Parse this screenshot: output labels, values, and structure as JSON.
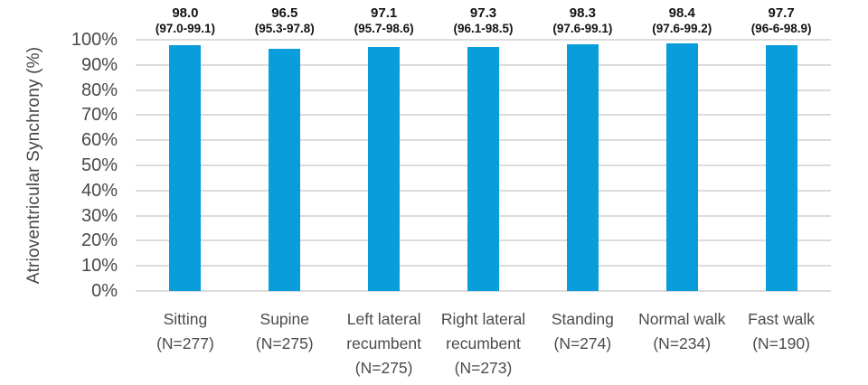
{
  "chart_data": {
    "type": "bar",
    "title": "",
    "xlabel": "",
    "ylabel": "Atrioventricular Synchrony (%)",
    "ylim": [
      0,
      100
    ],
    "ytick_step": 10,
    "ytick_labels": [
      "0%",
      "10%",
      "20%",
      "30%",
      "40%",
      "50%",
      "60%",
      "70%",
      "80%",
      "90%",
      "100%"
    ],
    "grid": true,
    "legend": "none",
    "bar_color": "#0a9ddb",
    "gridline_color": "#dcdcdc",
    "categories": [
      "Sitting (N=277)",
      "Supine (N=275)",
      "Left lateral recumbent (N=275)",
      "Right lateral recumbent (N=273)",
      "Standing (N=274)",
      "Normal walk (N=234)",
      "Fast walk (N=190)"
    ],
    "category_label_lines": [
      [
        "Sitting",
        "(N=277)"
      ],
      [
        "Supine",
        "(N=275)"
      ],
      [
        "Left lateral",
        "recumbent",
        "(N=275)"
      ],
      [
        "Right lateral",
        "recumbent",
        "(N=273)"
      ],
      [
        "Standing",
        "(N=274)"
      ],
      [
        "Normal walk",
        "(N=234)"
      ],
      [
        "Fast walk",
        "(N=190)"
      ]
    ],
    "n_values": [
      277,
      275,
      275,
      273,
      274,
      234,
      190
    ],
    "values": [
      98.0,
      96.5,
      97.1,
      97.3,
      98.3,
      98.4,
      97.7
    ],
    "value_labels": [
      "98.0",
      "96.5",
      "97.1",
      "97.3",
      "98.3",
      "98.4",
      "97.7"
    ],
    "ci_labels": [
      "(97.0-99.1)",
      "(95.3-97.8)",
      "(95.7-98.6)",
      "(96.1-98.5)",
      "(97.6-99.1)",
      "(97.6-99.2)",
      "(96-6-98.9)"
    ]
  }
}
